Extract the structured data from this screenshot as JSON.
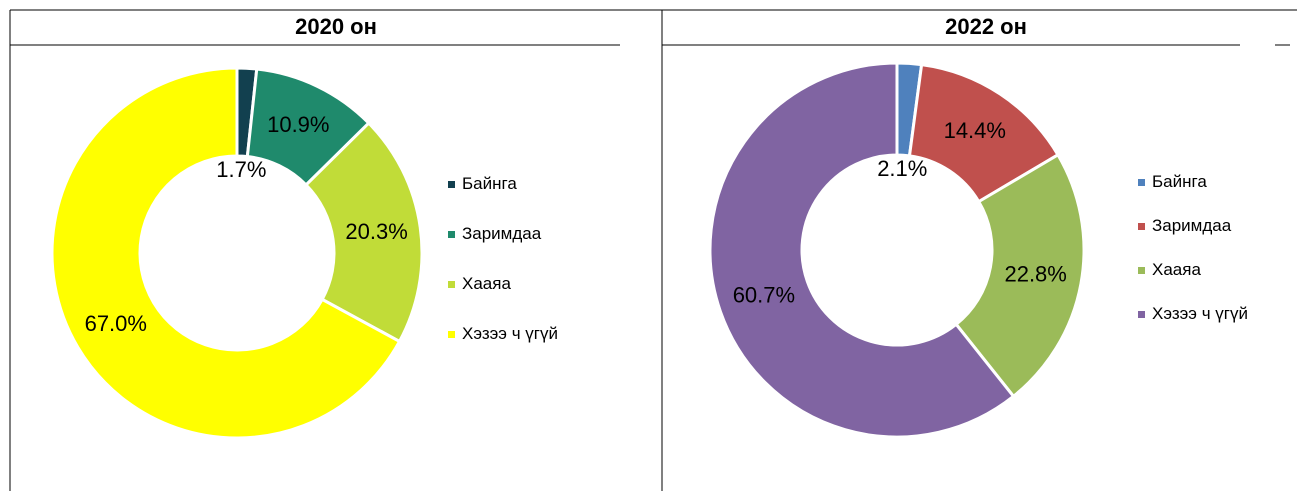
{
  "chart_data": [
    {
      "type": "pie",
      "title": "2020 он",
      "categories": [
        "Байнга",
        "Заримдаа",
        "Хааяа",
        "Хэзээ ч үгүй"
      ],
      "values": [
        1.7,
        10.9,
        20.3,
        67.0
      ],
      "value_labels": [
        "1.7%",
        "10.9%",
        "20.3%",
        "67.0%"
      ],
      "colors": [
        "#12404f",
        "#1f8a6c",
        "#c1dc38",
        "#ffff00"
      ]
    },
    {
      "type": "pie",
      "title": "2022 он",
      "categories": [
        "Байнга",
        "Заримдаа",
        "Хааяа",
        "Хэзээ ч үгүй"
      ],
      "values": [
        2.1,
        14.4,
        22.8,
        60.7
      ],
      "value_labels": [
        "2.1%",
        "14.4%",
        "22.8%",
        "60.7%"
      ],
      "colors": [
        "#4f81bd",
        "#c0504d",
        "#9bbb59",
        "#8064a2"
      ]
    }
  ]
}
